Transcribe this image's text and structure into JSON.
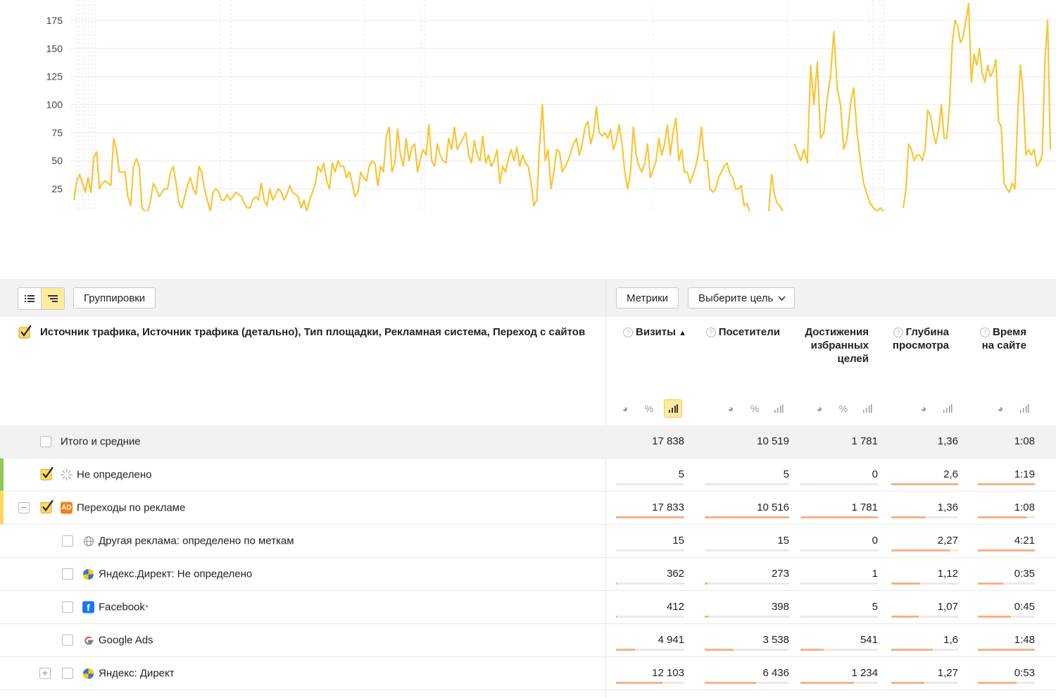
{
  "chart_data": {
    "type": "line",
    "title": "",
    "xlabel": "",
    "ylabel": "",
    "y_ticks": [
      "25",
      "50",
      "75",
      "100",
      "125",
      "150",
      "175"
    ],
    "ylim": [
      5,
      190
    ],
    "grid": true,
    "series": [
      {
        "color": "#f7c638",
        "segments": [
          [
            15,
            32,
            38,
            30,
            22,
            35,
            22,
            53,
            58,
            25,
            30,
            32,
            30,
            28,
            70,
            60,
            40,
            40,
            40,
            18,
            10,
            45,
            52,
            45,
            8,
            5,
            5,
            15,
            30,
            25,
            18,
            22,
            25,
            25,
            40,
            45,
            30,
            12,
            8,
            18,
            28,
            35,
            25,
            20,
            45,
            40,
            25,
            15,
            5,
            22,
            25,
            22,
            15,
            15,
            20,
            15,
            18,
            22,
            20,
            18,
            12,
            8,
            8,
            15,
            18,
            15,
            30,
            15,
            10,
            25,
            15,
            20,
            25,
            22,
            15,
            20,
            28,
            22,
            20,
            18,
            8,
            15,
            5,
            15,
            22,
            30,
            45,
            40,
            48,
            32,
            25,
            48,
            40,
            50,
            45,
            45,
            35,
            40,
            30,
            18,
            22,
            40,
            35,
            32,
            45,
            50,
            48,
            28,
            45,
            40,
            72,
            80,
            40,
            48,
            78,
            55,
            45,
            70,
            50,
            62,
            65,
            40,
            52,
            60,
            55,
            82,
            50,
            45,
            65,
            55,
            50,
            48,
            70,
            60,
            80,
            60,
            65,
            70,
            75,
            55,
            48,
            68,
            55,
            50,
            72,
            48,
            55,
            45,
            50,
            60,
            30,
            45,
            40,
            52,
            60,
            50,
            62,
            45,
            55,
            48,
            45,
            30,
            10,
            15,
            65,
            100,
            50,
            60,
            25,
            40,
            60,
            58,
            40,
            45,
            50,
            58,
            65,
            70,
            55,
            65,
            80,
            85,
            65,
            75,
            98,
            75,
            72,
            75,
            70,
            78,
            60,
            68,
            82,
            65,
            40,
            25,
            40,
            80,
            55,
            45,
            40,
            48,
            65,
            35,
            42,
            50,
            70,
            55,
            65,
            82,
            55,
            75,
            88,
            50,
            60,
            40,
            40,
            30,
            38,
            45,
            58,
            80,
            50,
            50,
            25,
            22,
            25,
            35,
            40,
            45,
            48,
            38,
            35,
            25,
            25,
            28,
            10,
            12,
            5
          ]
        ]
      }
    ],
    "series_b": [
      5,
      38,
      20,
      12,
      10,
      5
    ],
    "series_c": [
      65,
      58,
      50,
      60,
      48,
      135,
      100,
      138,
      70,
      75,
      105,
      125,
      165,
      115,
      100,
      60,
      70,
      100,
      115,
      75,
      50,
      30,
      20,
      12,
      8,
      5,
      8,
      5
    ],
    "series_d": [
      8,
      25,
      65,
      60,
      50,
      55,
      55,
      50,
      60,
      95,
      90,
      75,
      65,
      78,
      100,
      70,
      70,
      100,
      155,
      175,
      170,
      155,
      160,
      175,
      190,
      120,
      145,
      135,
      150,
      128,
      120,
      135,
      125,
      130,
      140,
      85,
      80,
      30,
      25,
      22,
      30,
      25,
      90,
      135,
      110,
      55,
      60,
      55,
      60,
      45,
      48,
      55,
      140,
      175,
      60
    ]
  },
  "toolbar": {
    "groupings_label": "Группировки",
    "metrics_label": "Метрики",
    "goal_select_label": "Выберите цель"
  },
  "table": {
    "dimensions_title": "Источник трафика, Источник трафика (детально), Тип площадки, Рекламная система, Переход с сайтов",
    "columns": [
      {
        "name": "Визиты",
        "sort": "▲",
        "help": true
      },
      {
        "name": "Посетители",
        "help": true
      },
      {
        "name": "Достижения избранных целей",
        "help": false
      },
      {
        "name": "Глубина просмотра",
        "help": true
      },
      {
        "name": "Время на сайте",
        "help": true
      }
    ],
    "rows": [
      {
        "label": "Итого и средние",
        "values": [
          "17 838",
          "10 519",
          "1 781",
          "1,36",
          "1:08"
        ],
        "bars": [
          0,
          0,
          0,
          0,
          0
        ]
      },
      {
        "label": "Не определено",
        "values": [
          "5",
          "5",
          "0",
          "2,6",
          "1:19"
        ],
        "bars": [
          0,
          0,
          0,
          1.0,
          1.0
        ]
      },
      {
        "label": "Переходы по рекламе",
        "icon_text": "AD",
        "values": [
          "17 833",
          "10 516",
          "1 781",
          "1,36",
          "1:08"
        ],
        "bars": [
          1.0,
          1.0,
          1.0,
          0.52,
          0.86
        ]
      },
      {
        "label": "Другая реклама: определено по меткам",
        "values": [
          "15",
          "15",
          "0",
          "2,27",
          "4:21"
        ],
        "bars": [
          0,
          0,
          0,
          0.87,
          1.0
        ]
      },
      {
        "label": "Яндекс.Директ: Не определено",
        "values": [
          "362",
          "273",
          "1",
          "1,12",
          "0:35"
        ],
        "bars": [
          0.02,
          0.03,
          0.0,
          0.43,
          0.45
        ]
      },
      {
        "label": "Facebook",
        "trademark": "*",
        "values": [
          "412",
          "398",
          "5",
          "1,07",
          "0:45"
        ],
        "bars": [
          0.02,
          0.04,
          0.0,
          0.41,
          0.58
        ]
      },
      {
        "label": "Google Ads",
        "values": [
          "4 941",
          "3 538",
          "541",
          "1,6",
          "1:48"
        ],
        "bars": [
          0.28,
          0.34,
          0.3,
          0.62,
          1.0
        ]
      },
      {
        "label": "Яндекс: Директ",
        "values": [
          "12 103",
          "6 436",
          "1 234",
          "1,27",
          "0:53"
        ],
        "bars": [
          0.68,
          0.61,
          0.69,
          0.49,
          0.68
        ]
      }
    ]
  }
}
